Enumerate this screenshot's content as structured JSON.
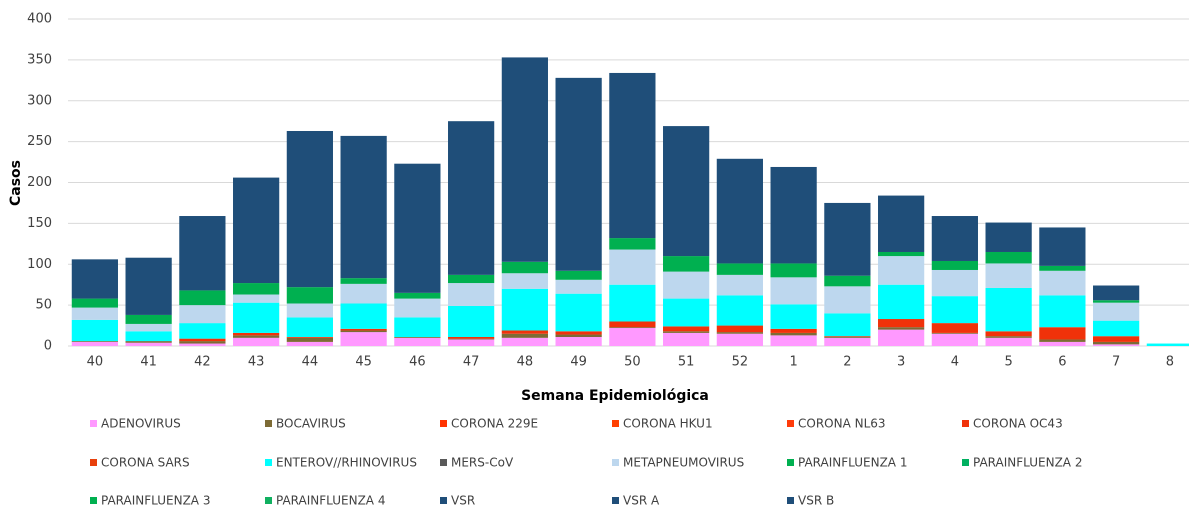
{
  "chart_data": {
    "type": "stacked_bar",
    "x_label": "Semana Epidemiológica",
    "y_label": "Casos",
    "categories": [
      "40",
      "41",
      "42",
      "43",
      "44",
      "45",
      "46",
      "47",
      "48",
      "49",
      "50",
      "51",
      "52",
      "1",
      "2",
      "3",
      "4",
      "5",
      "6",
      "7",
      "8"
    ],
    "ylim": [
      0,
      400
    ],
    "yticks": [
      0,
      50,
      100,
      150,
      200,
      250,
      300,
      350,
      400
    ],
    "grid": true,
    "legend": "bottom",
    "series": [
      {
        "name": "ADENOVIRUS",
        "color": "#ff99ff",
        "values": [
          5,
          4,
          3,
          10,
          5,
          17,
          10,
          8,
          10,
          11,
          22,
          16,
          15,
          13,
          10,
          20,
          15,
          10,
          5,
          2,
          0
        ]
      },
      {
        "name": "BOCAVIRUS",
        "color": "#7d6b35",
        "values": [
          1,
          2,
          3,
          3,
          5,
          2,
          1,
          1,
          5,
          3,
          1,
          2,
          2,
          3,
          1,
          3,
          1,
          2,
          3,
          3,
          0
        ]
      },
      {
        "name": "CORONA 229E",
        "color": "#ff3300",
        "values": [
          0,
          0,
          0,
          0,
          0,
          0,
          0,
          0,
          0,
          0,
          0,
          0,
          0,
          0,
          0,
          0,
          0,
          0,
          0,
          0,
          0
        ]
      },
      {
        "name": "CORONA HKU1",
        "color": "#ff4000",
        "values": [
          0,
          0,
          0,
          0,
          0,
          0,
          0,
          0,
          0,
          0,
          0,
          0,
          0,
          0,
          0,
          0,
          0,
          0,
          0,
          0,
          0
        ]
      },
      {
        "name": "CORONA NL63",
        "color": "#ff3b0a",
        "values": [
          0,
          0,
          0,
          0,
          0,
          0,
          0,
          0,
          0,
          0,
          0,
          0,
          0,
          0,
          0,
          0,
          0,
          0,
          0,
          0,
          0
        ]
      },
      {
        "name": "CORONA OC43",
        "color": "#f0320a",
        "values": [
          0,
          0,
          3,
          3,
          1,
          2,
          0,
          2,
          4,
          4,
          7,
          6,
          8,
          5,
          1,
          10,
          12,
          6,
          15,
          7,
          0
        ]
      },
      {
        "name": "CORONA SARS",
        "color": "#e8400c",
        "values": [
          0,
          0,
          0,
          0,
          0,
          0,
          0,
          0,
          0,
          0,
          0,
          0,
          0,
          0,
          0,
          0,
          0,
          0,
          0,
          0,
          0
        ]
      },
      {
        "name": "ENTEROV//RHINOVIRUS",
        "color": "#00ffff",
        "values": [
          26,
          12,
          19,
          37,
          24,
          31,
          24,
          38,
          51,
          46,
          45,
          34,
          37,
          30,
          28,
          42,
          33,
          53,
          39,
          19,
          3
        ]
      },
      {
        "name": "MERS-CoV",
        "color": "#595959",
        "values": [
          0,
          0,
          0,
          0,
          0,
          0,
          0,
          0,
          0,
          0,
          0,
          0,
          0,
          0,
          0,
          0,
          0,
          0,
          0,
          0,
          0
        ]
      },
      {
        "name": "METAPNEUMOVIRUS",
        "color": "#bdd7ee",
        "values": [
          15,
          9,
          22,
          10,
          17,
          24,
          23,
          28,
          19,
          17,
          43,
          33,
          25,
          33,
          33,
          35,
          32,
          30,
          30,
          22,
          0
        ]
      },
      {
        "name": "PARAINFLUENZA 1",
        "color": "#00b050",
        "values": [
          0,
          0,
          0,
          0,
          0,
          0,
          0,
          0,
          0,
          0,
          0,
          0,
          0,
          0,
          0,
          0,
          0,
          0,
          0,
          0,
          0
        ]
      },
      {
        "name": "PARAINFLUENZA 2",
        "color": "#00b060",
        "values": [
          0,
          0,
          0,
          0,
          0,
          0,
          0,
          0,
          0,
          0,
          0,
          0,
          0,
          0,
          0,
          0,
          0,
          0,
          0,
          0,
          0
        ]
      },
      {
        "name": "PARAINFLUENZA 3",
        "color": "#00b050",
        "values": [
          11,
          11,
          18,
          14,
          20,
          7,
          7,
          10,
          14,
          11,
          14,
          19,
          14,
          17,
          13,
          5,
          11,
          14,
          6,
          3,
          0
        ]
      },
      {
        "name": "PARAINFLUENZA 4",
        "color": "#10b060",
        "values": [
          0,
          0,
          0,
          0,
          0,
          0,
          0,
          0,
          0,
          0,
          0,
          0,
          0,
          0,
          0,
          0,
          0,
          0,
          0,
          0,
          0
        ]
      },
      {
        "name": "VSR",
        "color": "#1f4e79",
        "values": [
          48,
          70,
          91,
          129,
          191,
          174,
          158,
          188,
          250,
          236,
          202,
          159,
          128,
          118,
          89,
          69,
          55,
          36,
          47,
          18,
          0
        ]
      },
      {
        "name": "VSR A",
        "color": "#1f4e79",
        "values": [
          0,
          0,
          0,
          0,
          0,
          0,
          0,
          0,
          0,
          0,
          0,
          0,
          0,
          0,
          0,
          0,
          0,
          0,
          0,
          0,
          0
        ]
      },
      {
        "name": "VSR B",
        "color": "#1f4e79",
        "values": [
          0,
          0,
          0,
          0,
          0,
          0,
          0,
          0,
          0,
          0,
          0,
          0,
          0,
          0,
          0,
          0,
          0,
          0,
          0,
          0,
          0
        ]
      }
    ]
  }
}
